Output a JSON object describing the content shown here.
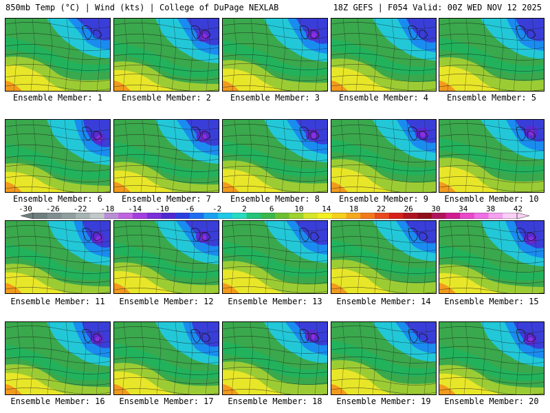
{
  "header": {
    "left": "850mb Temp (°C) | Wind (kts) | College of DuPage NEXLAB",
    "right": "18Z GEFS | F054 Valid: 00Z WED NOV 12 2025"
  },
  "members": [
    {
      "caption": "Ensemble Member: 1"
    },
    {
      "caption": "Ensemble Member: 2"
    },
    {
      "caption": "Ensemble Member: 3"
    },
    {
      "caption": "Ensemble Member: 4"
    },
    {
      "caption": "Ensemble Member: 5"
    },
    {
      "caption": "Ensemble Member: 6"
    },
    {
      "caption": "Ensemble Member: 7"
    },
    {
      "caption": "Ensemble Member: 8"
    },
    {
      "caption": "Ensemble Member: 9"
    },
    {
      "caption": "Ensemble Member: 10"
    },
    {
      "caption": "Ensemble Member: 11"
    },
    {
      "caption": "Ensemble Member: 12"
    },
    {
      "caption": "Ensemble Member: 13"
    },
    {
      "caption": "Ensemble Member: 14"
    },
    {
      "caption": "Ensemble Member: 15"
    },
    {
      "caption": "Ensemble Member: 16"
    },
    {
      "caption": "Ensemble Member: 17"
    },
    {
      "caption": "Ensemble Member: 18"
    },
    {
      "caption": "Ensemble Member: 19"
    },
    {
      "caption": "Ensemble Member: 20"
    }
  ],
  "colorbar": {
    "labels": [
      "-30",
      "-26",
      "-22",
      "-18",
      "-14",
      "-10",
      "-6",
      "-2",
      "2",
      "6",
      "10",
      "14",
      "18",
      "22",
      "26",
      "30",
      "34",
      "38",
      "42"
    ],
    "colors": [
      "#6e7e7e",
      "#7f8f8f",
      "#909e9e",
      "#a7b3b3",
      "#c2c8c8",
      "#b88fd6",
      "#c064e0",
      "#a53ee0",
      "#7a2fd8",
      "#4e2ad0",
      "#2a3ee0",
      "#1e6cf0",
      "#1aa0f0",
      "#20c8e8",
      "#27dcc0",
      "#22c47a",
      "#3ab84a",
      "#6cc030",
      "#9ed22e",
      "#d6e62a",
      "#f4f020",
      "#f6d01c",
      "#f4a81c",
      "#f27a1c",
      "#ea4a1c",
      "#d8201a",
      "#b01220",
      "#900e1c",
      "#b01458",
      "#d01c90",
      "#e84ac8",
      "#f06ee6",
      "#f6a0f0",
      "#fbd0f6"
    ]
  }
}
